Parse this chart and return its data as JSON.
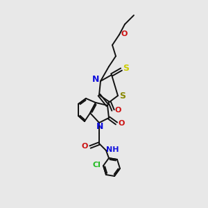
{
  "bg_color": "#e8e8e8",
  "bond_color": "#111111",
  "bond_width": 1.4,
  "figsize": [
    3.0,
    3.0
  ],
  "dpi": 100,
  "colors": {
    "N": "#1010dd",
    "O": "#cc1111",
    "S_thioxo": "#cccc00",
    "S_ring": "#888800",
    "Cl": "#22bb22",
    "NH": "#1010dd"
  }
}
